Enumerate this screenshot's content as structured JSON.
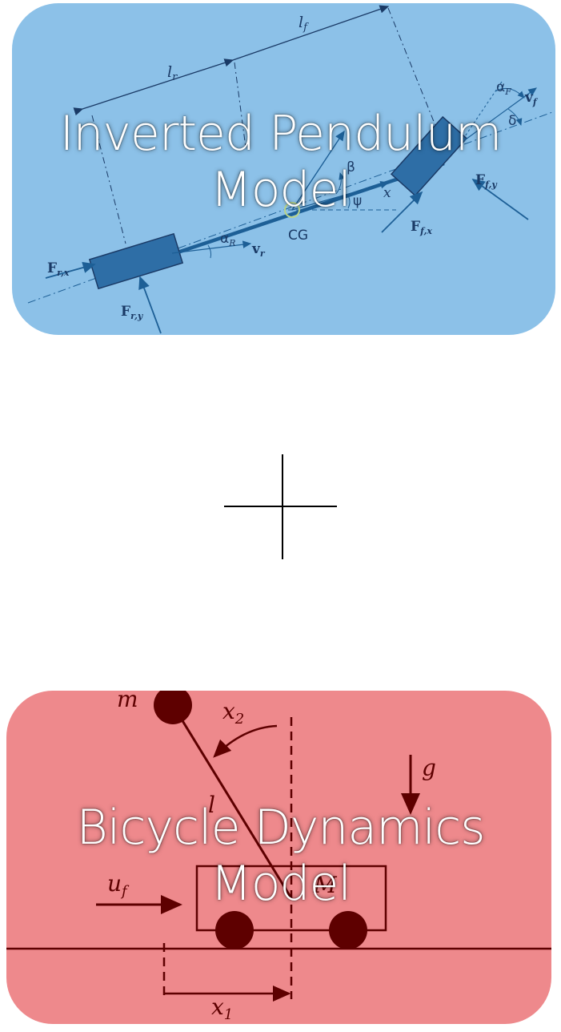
{
  "top_card": {
    "title_line1": "Inverted Pendulum",
    "title_line2": "Model",
    "color": "#8cc1e8",
    "ink": "#1d5f96",
    "labels": {
      "lf": "l",
      "lf_sub": "f",
      "lr": "l",
      "lr_sub": "r",
      "alpha_f": "α",
      "alpha_f_sub": "F",
      "v_f": "v",
      "v_f_sub": "f",
      "delta": "δ",
      "beta": "β",
      "psi": "ψ",
      "x": "x",
      "ffy": "F",
      "ffy_sub": "f,y",
      "ffx": "F",
      "ffx_sub": "f,x",
      "cg": "CG",
      "alpha_r": "α",
      "alpha_r_sub": "R",
      "v_r": "v",
      "v_r_sub": "r",
      "frx": "F",
      "frx_sub": "r,x",
      "fry": "F",
      "fry_sub": "r,y"
    }
  },
  "bottom_card": {
    "title_line1": "Bicycle Dynamics",
    "title_line2": "Model",
    "color": "#ee898c",
    "ink": "#5e0000",
    "labels": {
      "m": "m",
      "x2": "x",
      "x2_sub": "2",
      "g": "g",
      "l": "l",
      "M": "M",
      "uf": "u",
      "uf_sub": "f",
      "x1": "x",
      "x1_sub": "1"
    }
  },
  "plus_sign": {
    "color": "#000000"
  }
}
